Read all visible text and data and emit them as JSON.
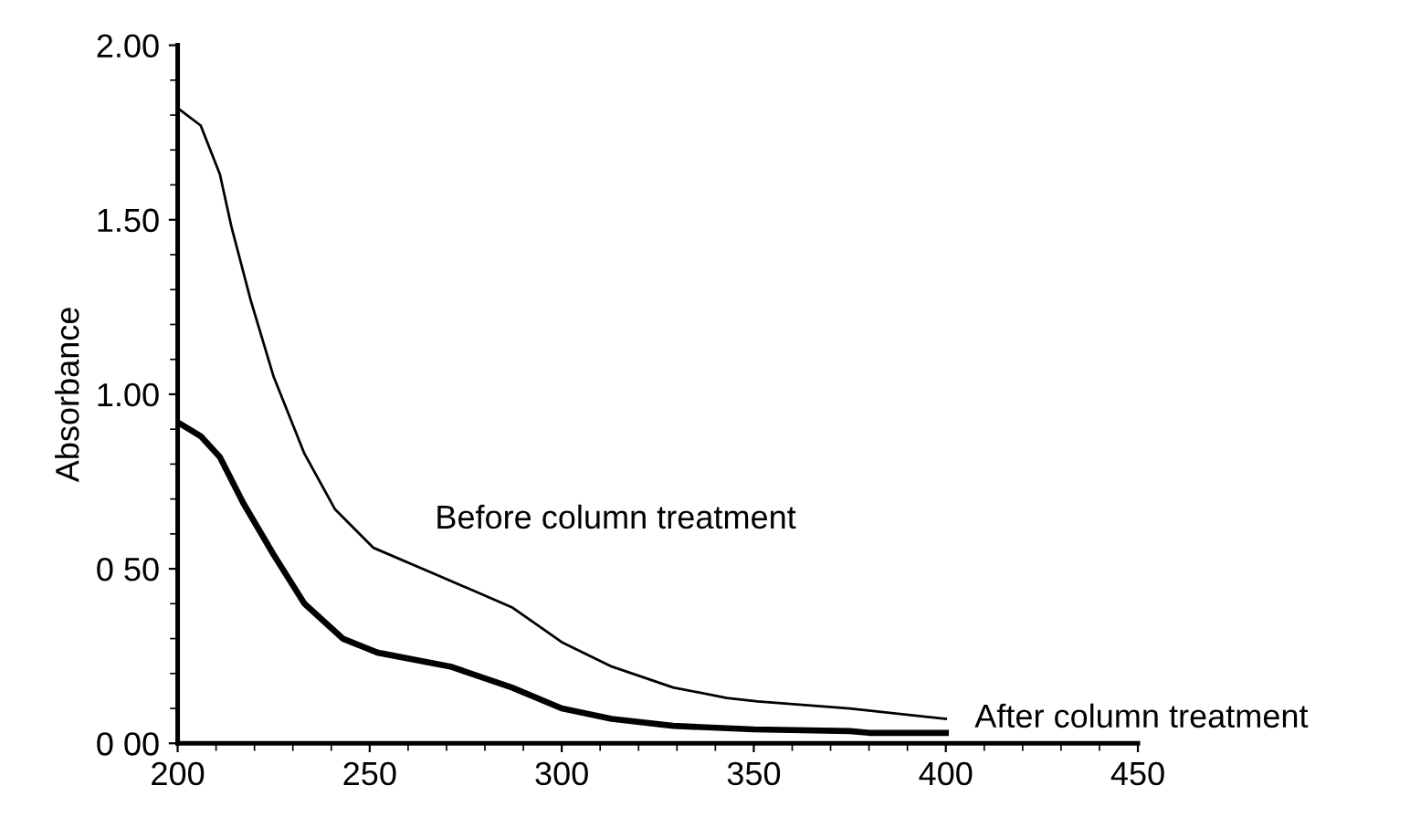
{
  "chart_data": {
    "type": "line",
    "ylabel": "Absorbance",
    "xlim": [
      200,
      450
    ],
    "xticks": [
      200,
      250,
      300,
      350,
      400,
      450
    ],
    "ylim": [
      0,
      2
    ],
    "yticks": [
      {
        "value": 0,
        "label": "0 00"
      },
      {
        "value": 0.5,
        "label": "0 50"
      },
      {
        "value": 1,
        "label": "1.00"
      },
      {
        "value": 1.5,
        "label": "1.50"
      },
      {
        "value": 2,
        "label": "2.00"
      }
    ],
    "grid": false,
    "legend": false,
    "marker": "none",
    "line_style": "solid",
    "series": [
      {
        "color": "#000000",
        "x": [
          200,
          206,
          211,
          214,
          219,
          225,
          233,
          241,
          251,
          268,
          287,
          300,
          313,
          329,
          343,
          351,
          375,
          400
        ],
        "values": [
          1.82,
          1.77,
          1.63,
          1.48,
          1.27,
          1.05,
          0.83,
          0.67,
          0.56,
          0.48,
          0.39,
          0.29,
          0.22,
          0.16,
          0.13,
          0.12,
          0.1,
          0.07
        ]
      },
      {
        "color": "#000000",
        "x": [
          200,
          206,
          211,
          217,
          225,
          233,
          243,
          252,
          271,
          287,
          300,
          313,
          329,
          350,
          375,
          380,
          400
        ],
        "values": [
          0.92,
          0.88,
          0.82,
          0.69,
          0.54,
          0.4,
          0.3,
          0.26,
          0.22,
          0.16,
          0.1,
          0.07,
          0.05,
          0.04,
          0.035,
          0.03,
          0.03
        ]
      }
    ],
    "annotations": [
      "Before column treatment",
      "After column treatment"
    ]
  }
}
